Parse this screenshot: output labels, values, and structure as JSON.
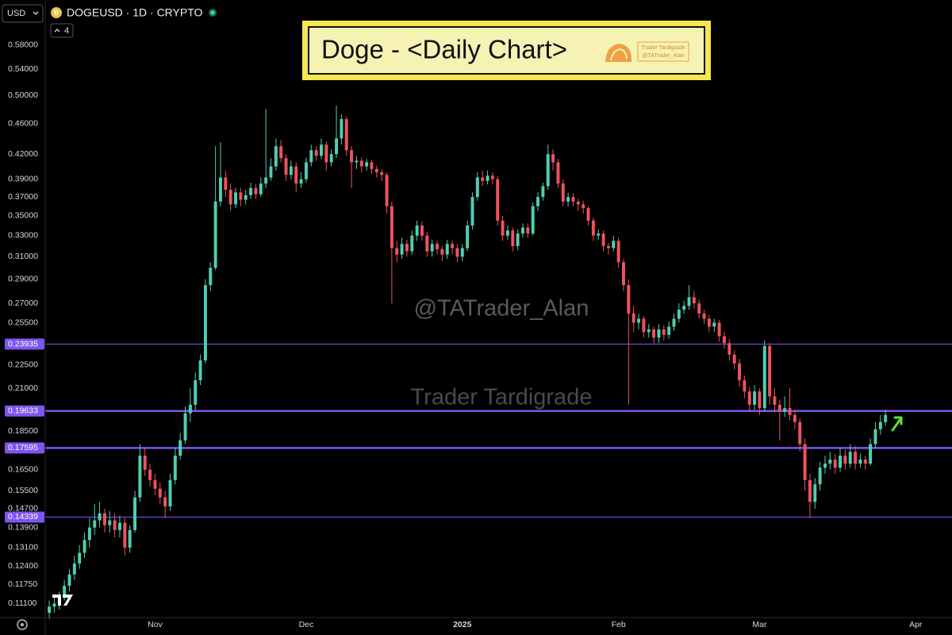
{
  "header": {
    "currency": "USD",
    "symbol": "DOGEUSD · 1D · CRYPTO",
    "indicator_count": 4
  },
  "chart_data": {
    "type": "candlestick",
    "title": "Doge - <Daily Chart>",
    "logo_name": "Trader Tardigrade",
    "logo_handle": "@TATrader_Alan",
    "watermarks": [
      "@TATrader_Alan",
      "Trader Tardigrade"
    ],
    "log_scale": true,
    "grid": false,
    "up_color": "#4fcfb2",
    "down_color": "#f0525f",
    "level_color": "#7d55f0",
    "ylim": [
      0.1065,
      0.663
    ],
    "yticks": [
      {
        "value": 0.58,
        "label": "0.58000"
      },
      {
        "value": 0.54,
        "label": "0.54000"
      },
      {
        "value": 0.5,
        "label": "0.50000"
      },
      {
        "value": 0.46,
        "label": "0.46000"
      },
      {
        "value": 0.42,
        "label": "0.42000"
      },
      {
        "value": 0.39,
        "label": "0.39000"
      },
      {
        "value": 0.37,
        "label": "0.37000"
      },
      {
        "value": 0.35,
        "label": "0.35000"
      },
      {
        "value": 0.33,
        "label": "0.33000"
      },
      {
        "value": 0.31,
        "label": "0.31000"
      },
      {
        "value": 0.29,
        "label": "0.29000"
      },
      {
        "value": 0.27,
        "label": "0.27000"
      },
      {
        "value": 0.255,
        "label": "0.25500"
      },
      {
        "value": 0.225,
        "label": "0.22500"
      },
      {
        "value": 0.21,
        "label": "0.21000"
      },
      {
        "value": 0.185,
        "label": "0.18500"
      },
      {
        "value": 0.165,
        "label": "0.16500"
      },
      {
        "value": 0.155,
        "label": "0.15500"
      },
      {
        "value": 0.147,
        "label": "0.14700"
      },
      {
        "value": 0.139,
        "label": "0.13900"
      },
      {
        "value": 0.131,
        "label": "0.13100"
      },
      {
        "value": 0.124,
        "label": "0.12400"
      },
      {
        "value": 0.1175,
        "label": "0.11750"
      },
      {
        "value": 0.111,
        "label": "0.11100"
      }
    ],
    "levels": [
      {
        "value": 0.23935,
        "major": false
      },
      {
        "value": 0.19633,
        "major": true
      },
      {
        "value": 0.17595,
        "major": true
      },
      {
        "value": 0.14339,
        "major": false
      }
    ],
    "xlim": [
      -0.8,
      179.2
    ],
    "xticks": [
      {
        "value": 21,
        "label": "Nov"
      },
      {
        "value": 51,
        "label": "Dec"
      },
      {
        "value": 82,
        "label": "2025"
      },
      {
        "value": 113,
        "label": "Feb"
      },
      {
        "value": 141,
        "label": "Mar"
      },
      {
        "value": 172,
        "label": "Apr"
      }
    ],
    "candles": [
      [
        0.108,
        0.112,
        0.106,
        0.11
      ],
      [
        0.11,
        0.113,
        0.108,
        0.111
      ],
      [
        0.111,
        0.115,
        0.109,
        0.113
      ],
      [
        0.113,
        0.119,
        0.112,
        0.117
      ],
      [
        0.117,
        0.123,
        0.115,
        0.121
      ],
      [
        0.121,
        0.128,
        0.119,
        0.125
      ],
      [
        0.125,
        0.132,
        0.123,
        0.129
      ],
      [
        0.129,
        0.137,
        0.127,
        0.134
      ],
      [
        0.134,
        0.143,
        0.131,
        0.139
      ],
      [
        0.139,
        0.149,
        0.136,
        0.142
      ],
      [
        0.142,
        0.15,
        0.139,
        0.145
      ],
      [
        0.145,
        0.147,
        0.137,
        0.14
      ],
      [
        0.14,
        0.146,
        0.137,
        0.142
      ],
      [
        0.142,
        0.145,
        0.135,
        0.138
      ],
      [
        0.138,
        0.144,
        0.135,
        0.141
      ],
      [
        0.141,
        0.143,
        0.128,
        0.131
      ],
      [
        0.131,
        0.14,
        0.129,
        0.138
      ],
      [
        0.138,
        0.155,
        0.137,
        0.152
      ],
      [
        0.152,
        0.178,
        0.15,
        0.172
      ],
      [
        0.172,
        0.176,
        0.162,
        0.165
      ],
      [
        0.165,
        0.168,
        0.157,
        0.16
      ],
      [
        0.16,
        0.163,
        0.153,
        0.156
      ],
      [
        0.156,
        0.159,
        0.149,
        0.152
      ],
      [
        0.152,
        0.155,
        0.143,
        0.148
      ],
      [
        0.148,
        0.163,
        0.146,
        0.16
      ],
      [
        0.16,
        0.176,
        0.158,
        0.172
      ],
      [
        0.172,
        0.184,
        0.17,
        0.18
      ],
      [
        0.18,
        0.199,
        0.178,
        0.195
      ],
      [
        0.195,
        0.21,
        0.19,
        0.2
      ],
      [
        0.2,
        0.22,
        0.197,
        0.215
      ],
      [
        0.215,
        0.232,
        0.212,
        0.228
      ],
      [
        0.228,
        0.29,
        0.226,
        0.285
      ],
      [
        0.285,
        0.305,
        0.28,
        0.3
      ],
      [
        0.3,
        0.43,
        0.298,
        0.365
      ],
      [
        0.365,
        0.435,
        0.36,
        0.392
      ],
      [
        0.392,
        0.4,
        0.37,
        0.378
      ],
      [
        0.378,
        0.385,
        0.355,
        0.362
      ],
      [
        0.362,
        0.38,
        0.358,
        0.375
      ],
      [
        0.375,
        0.38,
        0.36,
        0.367
      ],
      [
        0.367,
        0.378,
        0.362,
        0.372
      ],
      [
        0.372,
        0.386,
        0.368,
        0.38
      ],
      [
        0.38,
        0.384,
        0.368,
        0.373
      ],
      [
        0.373,
        0.392,
        0.37,
        0.385
      ],
      [
        0.385,
        0.48,
        0.38,
        0.392
      ],
      [
        0.392,
        0.415,
        0.388,
        0.405
      ],
      [
        0.405,
        0.44,
        0.4,
        0.43
      ],
      [
        0.43,
        0.438,
        0.41,
        0.415
      ],
      [
        0.415,
        0.42,
        0.388,
        0.395
      ],
      [
        0.395,
        0.412,
        0.39,
        0.405
      ],
      [
        0.405,
        0.41,
        0.375,
        0.385
      ],
      [
        0.385,
        0.398,
        0.38,
        0.39
      ],
      [
        0.39,
        0.416,
        0.386,
        0.41
      ],
      [
        0.41,
        0.432,
        0.405,
        0.425
      ],
      [
        0.425,
        0.43,
        0.412,
        0.418
      ],
      [
        0.418,
        0.44,
        0.414,
        0.432
      ],
      [
        0.432,
        0.436,
        0.4,
        0.41
      ],
      [
        0.41,
        0.426,
        0.405,
        0.42
      ],
      [
        0.42,
        0.485,
        0.415,
        0.44
      ],
      [
        0.44,
        0.472,
        0.432,
        0.466
      ],
      [
        0.466,
        0.47,
        0.418,
        0.425
      ],
      [
        0.425,
        0.43,
        0.38,
        0.41
      ],
      [
        0.41,
        0.418,
        0.402,
        0.412
      ],
      [
        0.412,
        0.416,
        0.398,
        0.405
      ],
      [
        0.405,
        0.414,
        0.4,
        0.41
      ],
      [
        0.41,
        0.413,
        0.396,
        0.402
      ],
      [
        0.402,
        0.406,
        0.392,
        0.398
      ],
      [
        0.398,
        0.402,
        0.388,
        0.395
      ],
      [
        0.395,
        0.398,
        0.352,
        0.36
      ],
      [
        0.36,
        0.365,
        0.27,
        0.318
      ],
      [
        0.318,
        0.325,
        0.305,
        0.312
      ],
      [
        0.312,
        0.328,
        0.308,
        0.322
      ],
      [
        0.322,
        0.326,
        0.31,
        0.315
      ],
      [
        0.315,
        0.335,
        0.312,
        0.33
      ],
      [
        0.33,
        0.345,
        0.325,
        0.34
      ],
      [
        0.34,
        0.344,
        0.325,
        0.33
      ],
      [
        0.33,
        0.334,
        0.31,
        0.315
      ],
      [
        0.315,
        0.326,
        0.31,
        0.322
      ],
      [
        0.322,
        0.325,
        0.312,
        0.317
      ],
      [
        0.317,
        0.32,
        0.306,
        0.312
      ],
      [
        0.312,
        0.326,
        0.308,
        0.322
      ],
      [
        0.322,
        0.325,
        0.312,
        0.318
      ],
      [
        0.318,
        0.322,
        0.305,
        0.31
      ],
      [
        0.31,
        0.322,
        0.306,
        0.318
      ],
      [
        0.318,
        0.345,
        0.315,
        0.34
      ],
      [
        0.34,
        0.375,
        0.336,
        0.37
      ],
      [
        0.37,
        0.398,
        0.366,
        0.392
      ],
      [
        0.392,
        0.4,
        0.382,
        0.388
      ],
      [
        0.388,
        0.4,
        0.384,
        0.394
      ],
      [
        0.394,
        0.398,
        0.384,
        0.39
      ],
      [
        0.39,
        0.394,
        0.34,
        0.345
      ],
      [
        0.345,
        0.35,
        0.325,
        0.33
      ],
      [
        0.33,
        0.34,
        0.326,
        0.335
      ],
      [
        0.335,
        0.338,
        0.315,
        0.32
      ],
      [
        0.32,
        0.336,
        0.316,
        0.332
      ],
      [
        0.332,
        0.342,
        0.328,
        0.338
      ],
      [
        0.338,
        0.342,
        0.328,
        0.332
      ],
      [
        0.332,
        0.364,
        0.33,
        0.36
      ],
      [
        0.36,
        0.375,
        0.355,
        0.37
      ],
      [
        0.37,
        0.386,
        0.366,
        0.382
      ],
      [
        0.382,
        0.432,
        0.378,
        0.42
      ],
      [
        0.42,
        0.426,
        0.4,
        0.41
      ],
      [
        0.41,
        0.414,
        0.38,
        0.385
      ],
      [
        0.385,
        0.39,
        0.36,
        0.365
      ],
      [
        0.365,
        0.375,
        0.36,
        0.37
      ],
      [
        0.37,
        0.374,
        0.36,
        0.365
      ],
      [
        0.365,
        0.368,
        0.355,
        0.362
      ],
      [
        0.362,
        0.366,
        0.352,
        0.358
      ],
      [
        0.358,
        0.36,
        0.34,
        0.345
      ],
      [
        0.345,
        0.348,
        0.325,
        0.33
      ],
      [
        0.33,
        0.336,
        0.326,
        0.332
      ],
      [
        0.332,
        0.335,
        0.315,
        0.32
      ],
      [
        0.32,
        0.323,
        0.312,
        0.318
      ],
      [
        0.318,
        0.33,
        0.315,
        0.325
      ],
      [
        0.325,
        0.328,
        0.3,
        0.305
      ],
      [
        0.305,
        0.308,
        0.28,
        0.285
      ],
      [
        0.285,
        0.29,
        0.2,
        0.262
      ],
      [
        0.262,
        0.268,
        0.248,
        0.255
      ],
      [
        0.255,
        0.262,
        0.25,
        0.258
      ],
      [
        0.258,
        0.26,
        0.244,
        0.248
      ],
      [
        0.248,
        0.254,
        0.244,
        0.25
      ],
      [
        0.25,
        0.252,
        0.24,
        0.244
      ],
      [
        0.244,
        0.254,
        0.24,
        0.25
      ],
      [
        0.25,
        0.253,
        0.242,
        0.246
      ],
      [
        0.246,
        0.256,
        0.243,
        0.252
      ],
      [
        0.252,
        0.262,
        0.249,
        0.258
      ],
      [
        0.258,
        0.27,
        0.255,
        0.265
      ],
      [
        0.265,
        0.272,
        0.262,
        0.268
      ],
      [
        0.268,
        0.285,
        0.265,
        0.275
      ],
      [
        0.275,
        0.28,
        0.266,
        0.27
      ],
      [
        0.27,
        0.273,
        0.258,
        0.262
      ],
      [
        0.262,
        0.265,
        0.254,
        0.258
      ],
      [
        0.258,
        0.261,
        0.248,
        0.252
      ],
      [
        0.252,
        0.258,
        0.248,
        0.255
      ],
      [
        0.255,
        0.257,
        0.241,
        0.245
      ],
      [
        0.245,
        0.248,
        0.236,
        0.24
      ],
      [
        0.24,
        0.243,
        0.228,
        0.232
      ],
      [
        0.232,
        0.235,
        0.222,
        0.226
      ],
      [
        0.226,
        0.229,
        0.211,
        0.215
      ],
      [
        0.215,
        0.218,
        0.204,
        0.208
      ],
      [
        0.208,
        0.211,
        0.196,
        0.2
      ],
      [
        0.2,
        0.212,
        0.197,
        0.208
      ],
      [
        0.208,
        0.21,
        0.194,
        0.198
      ],
      [
        0.198,
        0.242,
        0.196,
        0.238
      ],
      [
        0.238,
        0.24,
        0.2,
        0.205
      ],
      [
        0.205,
        0.21,
        0.196,
        0.2
      ],
      [
        0.2,
        0.203,
        0.18,
        0.196
      ],
      [
        0.196,
        0.205,
        0.193,
        0.198
      ],
      [
        0.198,
        0.21,
        0.191,
        0.194
      ],
      [
        0.194,
        0.197,
        0.186,
        0.19
      ],
      [
        0.19,
        0.192,
        0.174,
        0.178
      ],
      [
        0.178,
        0.181,
        0.155,
        0.16
      ],
      [
        0.16,
        0.163,
        0.143,
        0.15
      ],
      [
        0.15,
        0.161,
        0.147,
        0.158
      ],
      [
        0.158,
        0.169,
        0.155,
        0.166
      ],
      [
        0.166,
        0.172,
        0.163,
        0.168
      ],
      [
        0.168,
        0.174,
        0.165,
        0.17
      ],
      [
        0.17,
        0.173,
        0.163,
        0.166
      ],
      [
        0.166,
        0.176,
        0.164,
        0.172
      ],
      [
        0.172,
        0.175,
        0.165,
        0.168
      ],
      [
        0.168,
        0.178,
        0.166,
        0.174
      ],
      [
        0.174,
        0.177,
        0.165,
        0.168
      ],
      [
        0.168,
        0.173,
        0.166,
        0.17
      ],
      [
        0.17,
        0.172,
        0.165,
        0.168
      ],
      [
        0.168,
        0.181,
        0.167,
        0.178
      ],
      [
        0.178,
        0.19,
        0.176,
        0.186
      ],
      [
        0.186,
        0.194,
        0.183,
        0.19
      ],
      [
        0.19,
        0.197,
        0.188,
        0.194
      ]
    ]
  }
}
